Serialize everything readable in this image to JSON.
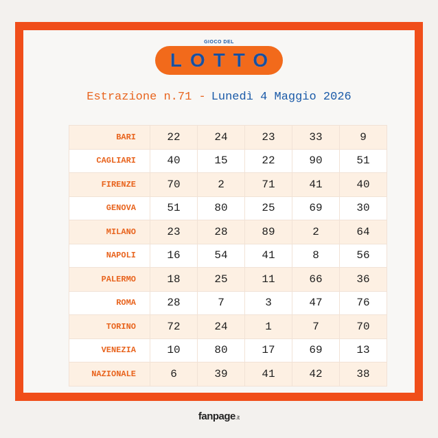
{
  "logo": {
    "top": "GIOCO DEL",
    "word": "LOTTO"
  },
  "subtitle": {
    "draw": "Estrazione n.71 -",
    "date": "Lunedì 4 Maggio 2026"
  },
  "table": {
    "rows": [
      [
        "BARI",
        22,
        24,
        23,
        33,
        9
      ],
      [
        "CAGLIARI",
        40,
        15,
        22,
        90,
        51
      ],
      [
        "FIRENZE",
        70,
        2,
        71,
        41,
        40
      ],
      [
        "GENOVA",
        51,
        80,
        25,
        69,
        30
      ],
      [
        "MILANO",
        23,
        28,
        89,
        2,
        64
      ],
      [
        "NAPOLI",
        16,
        54,
        41,
        8,
        56
      ],
      [
        "PALERMO",
        18,
        25,
        11,
        66,
        36
      ],
      [
        "ROMA",
        28,
        7,
        3,
        47,
        76
      ],
      [
        "TORINO",
        72,
        24,
        1,
        7,
        70
      ],
      [
        "VENEZIA",
        10,
        80,
        17,
        69,
        13
      ],
      [
        "NAZIONALE",
        6,
        39,
        41,
        42,
        38
      ]
    ]
  },
  "footer": {
    "brand": "fanpage",
    "suffix": ".it"
  }
}
